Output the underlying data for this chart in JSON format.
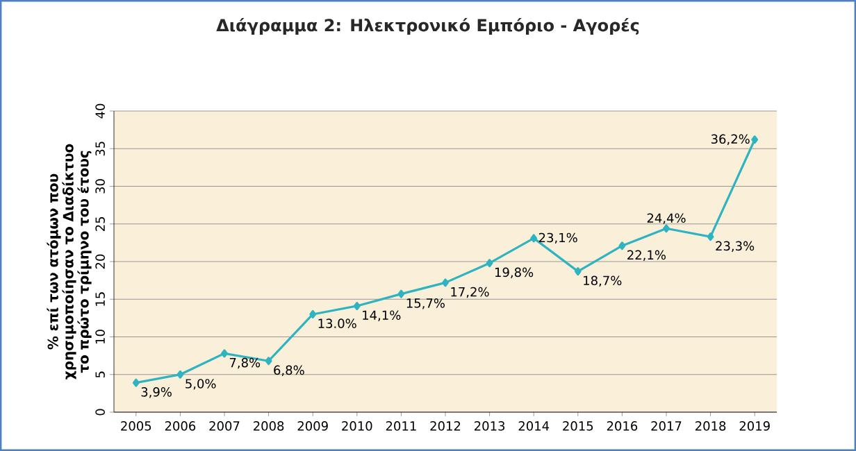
{
  "chart_data": {
    "type": "line",
    "title": "Διάγραμμα  2: Ηλεκτρονικό Εμπόριο - Αγορές",
    "ylabel": "% επί των ατόμων που χρησιμοποίησαν το Διαδίκτυο το πρώτο τρίμηνο του έτους",
    "categories": [
      "2005",
      "2006",
      "2007",
      "2008",
      "2009",
      "2010",
      "2011",
      "2012",
      "2013",
      "2014",
      "2015",
      "2016",
      "2017",
      "2018",
      "2019"
    ],
    "series": [
      {
        "color": "#2eb4c0",
        "values": [
          3.9,
          5.0,
          7.8,
          6.8,
          13.0,
          14.1,
          15.7,
          17.2,
          19.8,
          23.1,
          18.7,
          22.1,
          24.4,
          23.3,
          36.2
        ],
        "value_labels": [
          "3,9%",
          "5,0%",
          "7,8%",
          "6,8%",
          "13.0%",
          "14,1%",
          "15,7%",
          "17,2%",
          "19,8%",
          "23,1%",
          "18,7%",
          "22,1%",
          "24,4%",
          "23,3%",
          "36,2%"
        ]
      }
    ],
    "ylim": [
      0,
      40
    ],
    "yticks": [
      0,
      5,
      10,
      15,
      20,
      25,
      30,
      35,
      40
    ],
    "grid": "y",
    "marker": "diamond",
    "line_style": "solid"
  }
}
